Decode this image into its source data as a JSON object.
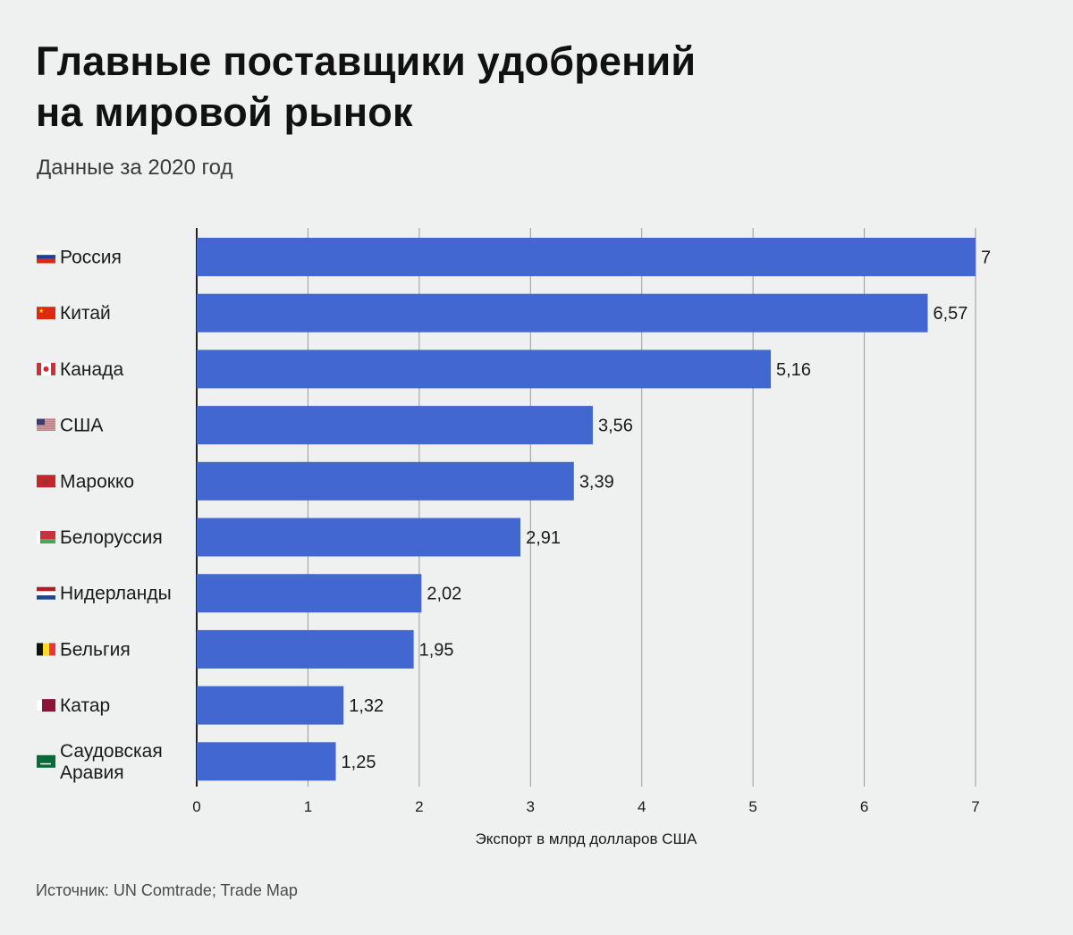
{
  "title_line1": "Главные поставщики удобрений",
  "title_line2": "на мировой рынок",
  "subtitle": "Данные за 2020 год",
  "source": "Источник: UN Comtrade; Trade Map",
  "colors": {
    "bar": "#4367d1",
    "background": "#eff1f0",
    "grid": "#9a9a9a"
  },
  "chart_data": {
    "type": "bar",
    "orientation": "horizontal",
    "categories": [
      {
        "label": [
          "Россия"
        ],
        "flag": "russia-flag"
      },
      {
        "label": [
          "Китай"
        ],
        "flag": "china-flag"
      },
      {
        "label": [
          "Канада"
        ],
        "flag": "canada-flag"
      },
      {
        "label": [
          "США"
        ],
        "flag": "usa-flag"
      },
      {
        "label": [
          "Марокко"
        ],
        "flag": "morocco-flag"
      },
      {
        "label": [
          "Белоруссия"
        ],
        "flag": "belarus-flag"
      },
      {
        "label": [
          "Нидерланды"
        ],
        "flag": "netherlands-flag"
      },
      {
        "label": [
          "Бельгия"
        ],
        "flag": "belgium-flag"
      },
      {
        "label": [
          "Катар"
        ],
        "flag": "qatar-flag"
      },
      {
        "label": [
          "Саудовская",
          "Аравия"
        ],
        "flag": "saudi-arabia-flag"
      }
    ],
    "values": [
      7,
      6.57,
      5.16,
      3.56,
      3.39,
      2.91,
      2.02,
      1.95,
      1.32,
      1.25
    ],
    "value_labels": [
      "7",
      "6,57",
      "5,16",
      "3,56",
      "3,39",
      "2,91",
      "2,02",
      "1,95",
      "1,32",
      "1,25"
    ],
    "xlim": [
      0,
      7
    ],
    "xticks": [
      "0",
      "1",
      "2",
      "3",
      "4",
      "5",
      "6",
      "7"
    ],
    "xlabel": "Экспорт в млрд долларов США",
    "grid": true,
    "legend": "none"
  }
}
